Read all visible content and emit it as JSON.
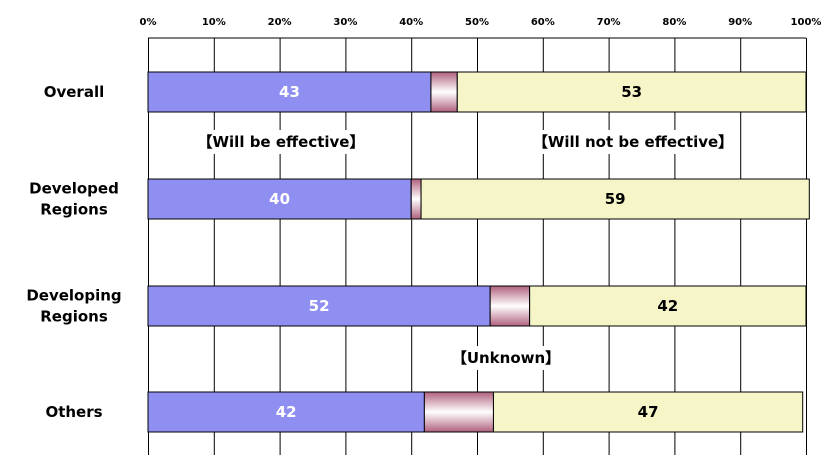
{
  "chart_data": {
    "type": "bar",
    "orientation": "horizontal",
    "stacked": true,
    "categories": [
      [
        "Overall"
      ],
      [
        "Developed",
        "Regions"
      ],
      [
        "Developing",
        "Regions"
      ],
      [
        "Others"
      ]
    ],
    "series": [
      {
        "name": "Will be effective",
        "values": [
          43,
          40,
          52,
          42
        ],
        "color": "#8f8ff2",
        "label_color": "#ffffff"
      },
      {
        "name": "Unknown",
        "values": [
          4,
          1.5,
          6,
          10.5
        ],
        "color": "#e8c9d4",
        "label_color": "#000000"
      },
      {
        "name": "Will not be effective",
        "values": [
          53,
          59,
          42,
          47
        ],
        "color": "#f5f5c8",
        "label_color": "#000000"
      }
    ],
    "data_labels": [
      [
        "43",
        "",
        "53"
      ],
      [
        "40",
        "",
        "59"
      ],
      [
        "52",
        "",
        "42"
      ],
      [
        "42",
        "",
        "47"
      ]
    ],
    "annotations": [
      "【Will be effective】",
      "【Will not be effective】",
      "【Unknown】"
    ],
    "xlim": [
      0,
      100
    ],
    "x_ticks": [
      "0%",
      "10%",
      "20%",
      "30%",
      "40%",
      "50%",
      "60%",
      "70%",
      "80%",
      "90%",
      "100%"
    ],
    "grid": true,
    "colors": {
      "grid": "#000000",
      "bar_border": "#000000"
    }
  }
}
